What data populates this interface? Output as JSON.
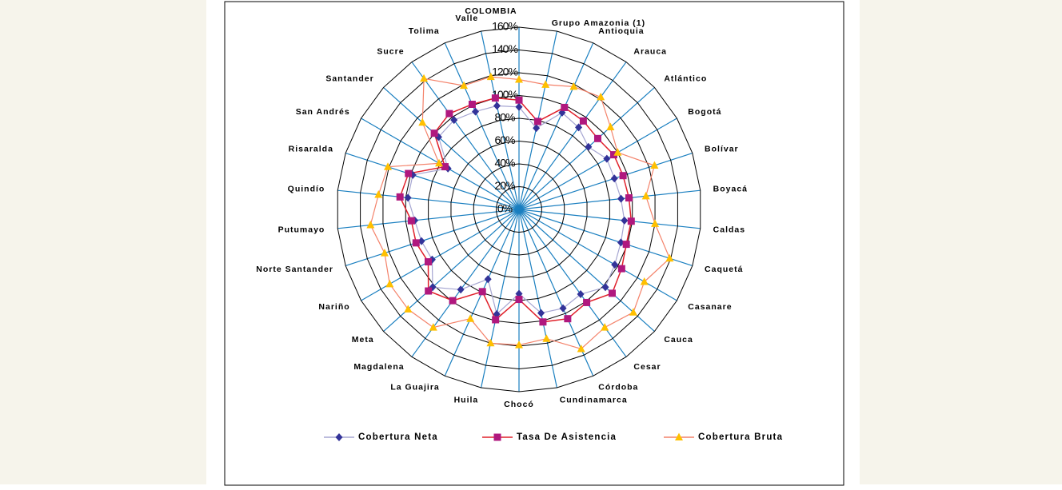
{
  "chart_data": {
    "type": "radar",
    "categories": [
      "COLOMBIA",
      "Grupo Amazonia (1)",
      "Antioquia",
      "Arauca",
      "Atlántico",
      "Bogotá",
      "Bolívar",
      "Boyacá",
      "Caldas",
      "Caquetá",
      "Casanare",
      "Cauca",
      "Cesar",
      "Córdoba",
      "Cundinamarca",
      "Chocó",
      "Huila",
      "La Guajira",
      "Magdalena",
      "Meta",
      "Nariño",
      "Norte Santander",
      "Putumayo",
      "Quindío",
      "Risaralda",
      "San Andrés",
      "Santander",
      "Sucre",
      "Tolima",
      "Valle"
    ],
    "series": [
      {
        "name": "Cobertura Neta",
        "color": "#333399",
        "line_color": "#a6a6d2",
        "marker": "diamond",
        "values": [
          90,
          73,
          93,
          89,
          82,
          89,
          88,
          90,
          93,
          94,
          97,
          102,
          92,
          95,
          93,
          74,
          94,
          67,
          87,
          102,
          88,
          90,
          92,
          98,
          98,
          72,
          95,
          97,
          94,
          93
        ]
      },
      {
        "name": "Tasa De Asistencia",
        "color": "#b0187e",
        "line_color": "#e0202a",
        "marker": "square",
        "values": [
          96,
          79,
          98,
          96,
          93,
          96,
          96,
          97,
          99,
          99,
          104,
          110,
          101,
          105,
          101,
          79,
          99,
          79,
          99,
          107,
          92,
          95,
          95,
          105,
          102,
          75,
          100,
          104,
          101,
          100
        ]
      },
      {
        "name": "Cobertura Bruta",
        "color": "#ffc000",
        "line_color": "#f4826a",
        "marker": "triangle",
        "values": [
          114,
          112,
          118,
          122,
          108,
          100,
          125,
          112,
          120,
          139,
          127,
          135,
          128,
          134,
          116,
          119,
          120,
          105,
          128,
          131,
          131,
          124,
          131,
          124,
          121,
          81,
          114,
          142,
          119,
          119
        ]
      }
    ],
    "ylim": [
      0,
      160
    ],
    "yticks": [
      {
        "value": 0,
        "label": "0%"
      },
      {
        "value": 20,
        "label": "20%"
      },
      {
        "value": 40,
        "label": "40%"
      },
      {
        "value": 60,
        "label": "60%"
      },
      {
        "value": 80,
        "label": "80%"
      },
      {
        "value": 100,
        "label": "100%"
      },
      {
        "value": 120,
        "label": "120%"
      },
      {
        "value": 140,
        "label": "140%"
      },
      {
        "value": 160,
        "label": "160%"
      }
    ],
    "grid": true,
    "legend": "bottom"
  }
}
